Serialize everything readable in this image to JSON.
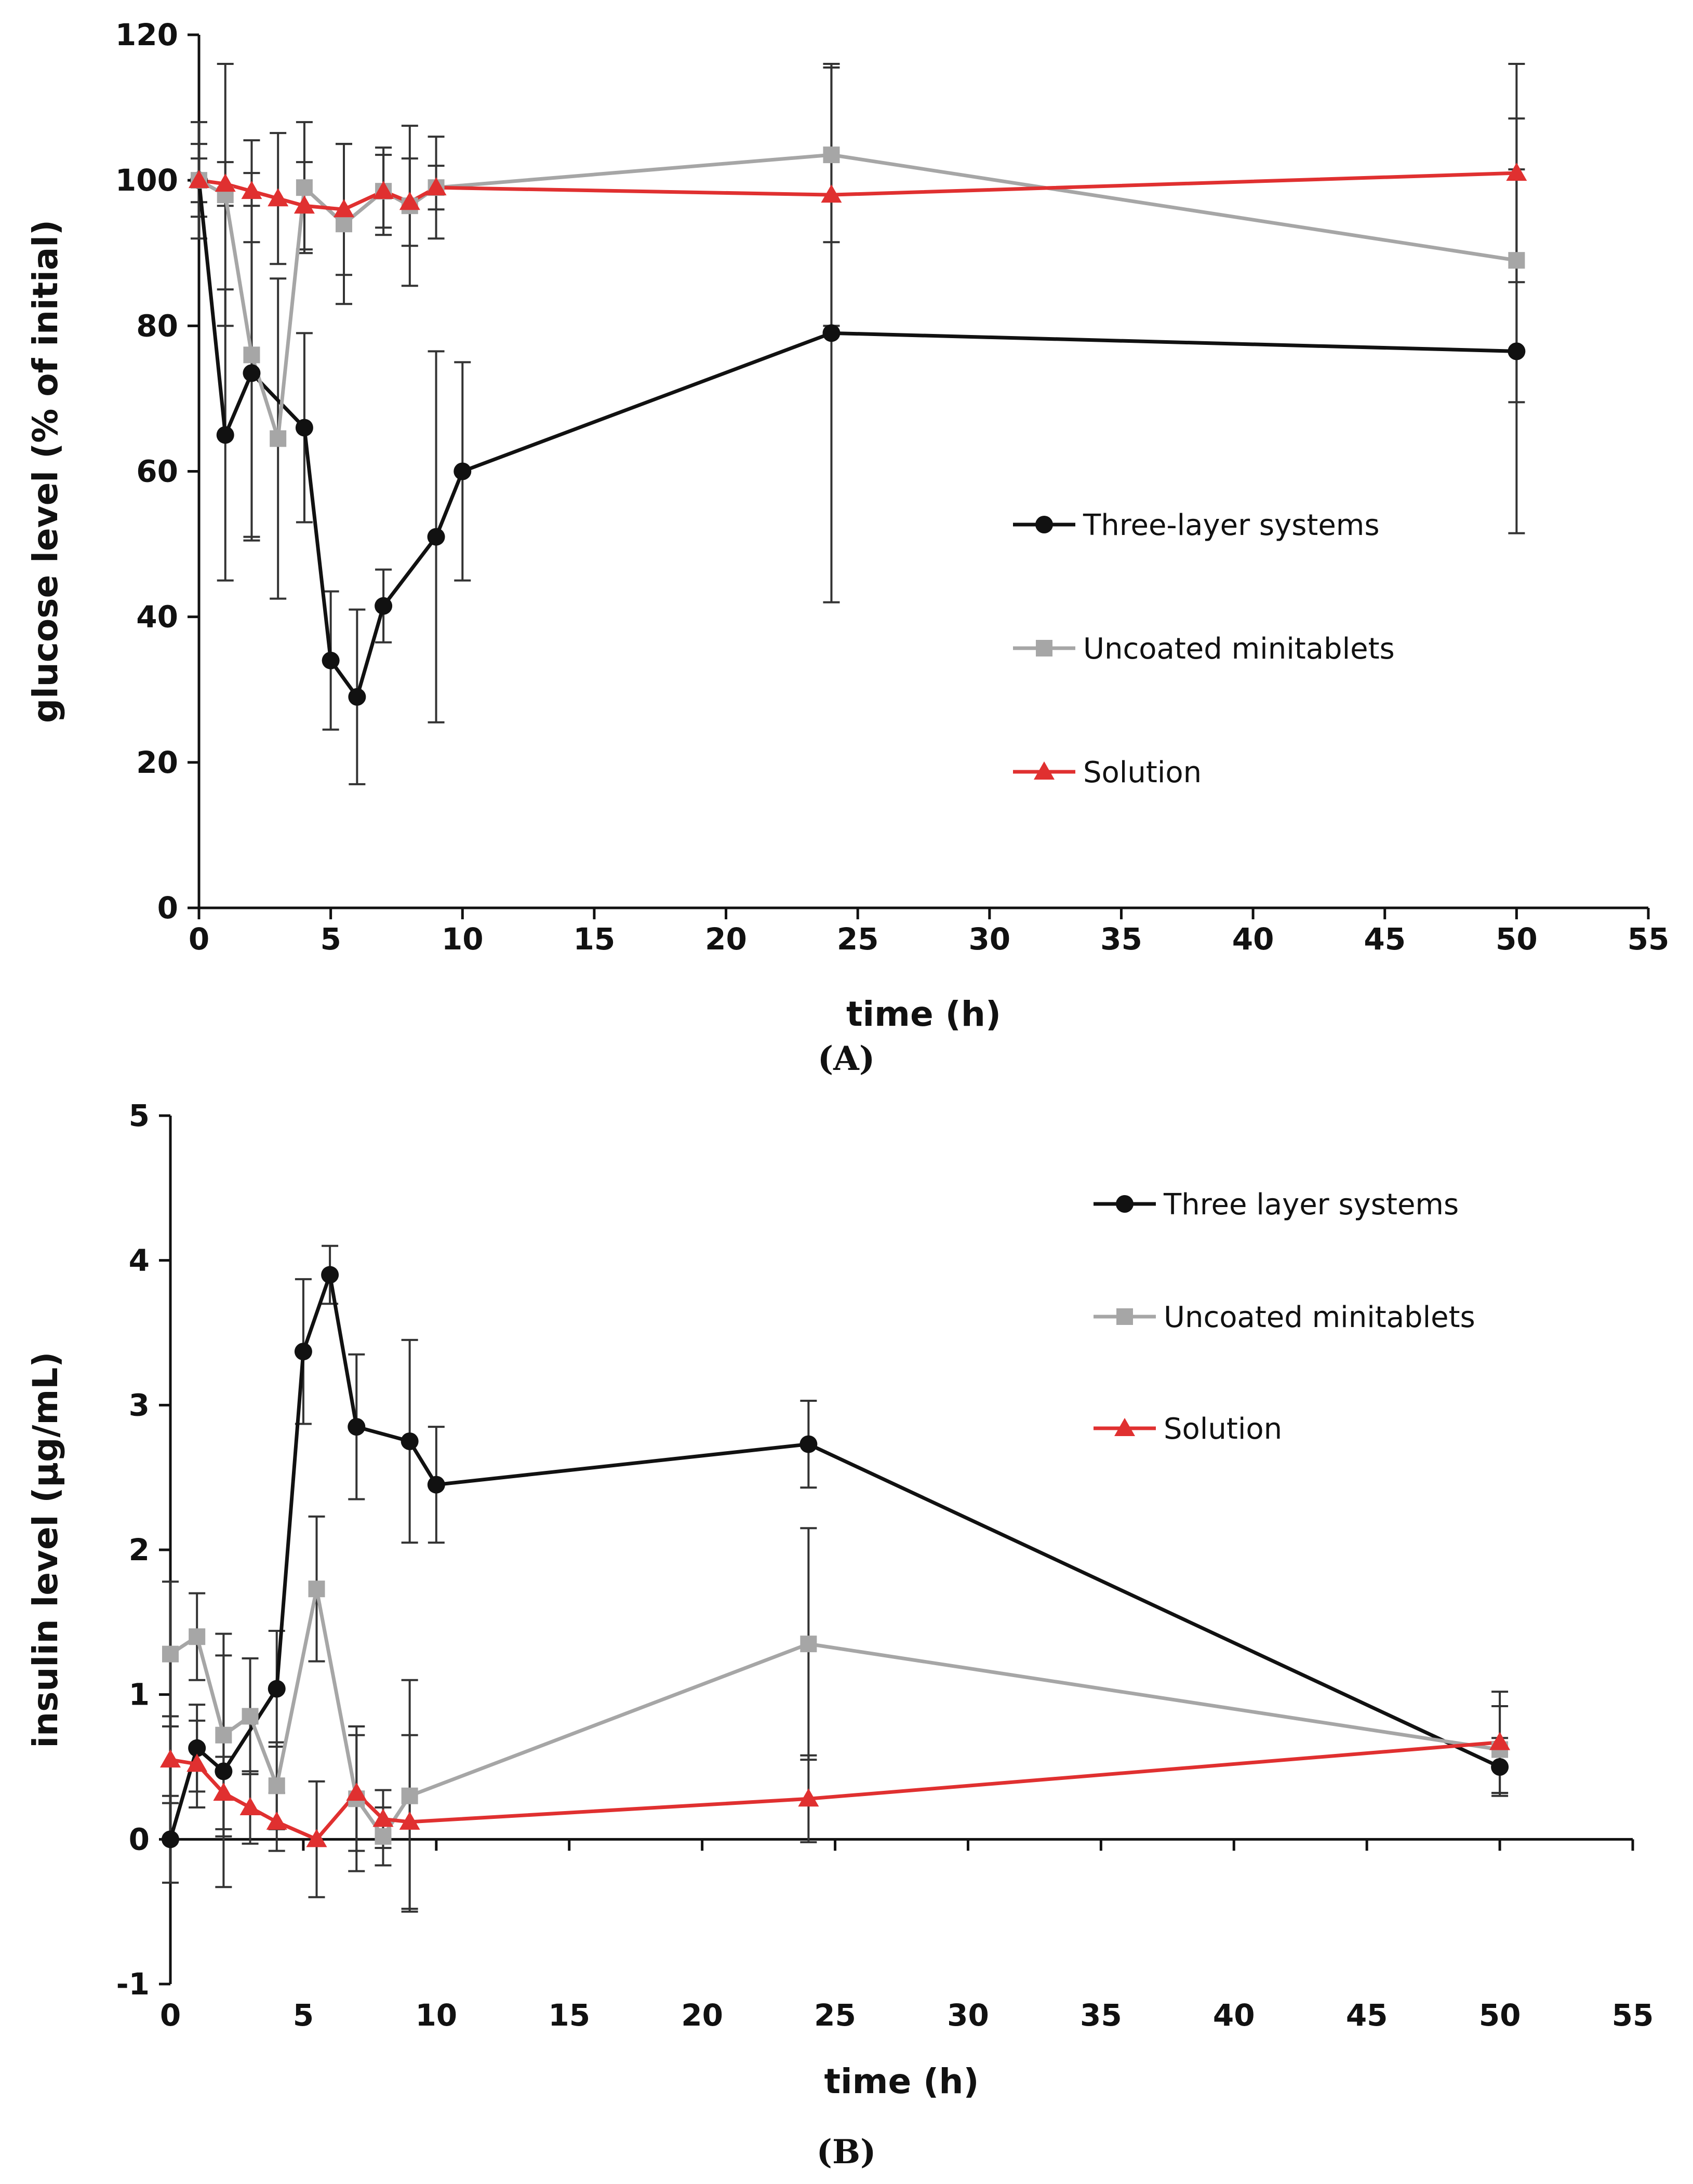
{
  "chart_data": [
    {
      "type": "line",
      "panel_label": "(A)",
      "xlabel": "time (h)",
      "ylabel": "glucose level (% of initial)",
      "xlim": [
        0,
        55
      ],
      "ylim": [
        0,
        120
      ],
      "xticks": [
        "0",
        "5",
        "10",
        "15",
        "20",
        "25",
        "30",
        "35",
        "40",
        "45",
        "50",
        "55"
      ],
      "yticks": [
        "0",
        "20",
        "40",
        "60",
        "80",
        "100",
        "120"
      ],
      "legend_position": "center-right",
      "series": [
        {
          "name": "Three-layer systems",
          "color": "#111111",
          "marker": "circle",
          "x": [
            0,
            1,
            2,
            4,
            5,
            6,
            7,
            9,
            10,
            24,
            50
          ],
          "y": [
            100,
            65,
            73.5,
            66,
            34,
            29,
            41.5,
            51,
            60,
            79,
            76.5
          ],
          "err": [
            8,
            20,
            23,
            13,
            9.5,
            12,
            5,
            25.5,
            15,
            37,
            25
          ]
        },
        {
          "name": "Uncoated minitablets",
          "color": "#a6a6a6",
          "marker": "square",
          "x": [
            0,
            1,
            2,
            3,
            4,
            5.5,
            7,
            8,
            9,
            24,
            50
          ],
          "y": [
            100,
            98,
            76,
            64.5,
            99,
            94,
            98.5,
            96.5,
            99,
            103.5,
            89
          ],
          "err": [
            5,
            18,
            25,
            22,
            9,
            11,
            6,
            11,
            7,
            12,
            19.5
          ]
        },
        {
          "name": "Solution",
          "color": "#e03030",
          "marker": "triangle",
          "x": [
            0,
            1,
            2,
            3,
            4,
            5.5,
            7,
            8,
            9,
            24,
            50
          ],
          "y": [
            100,
            99.5,
            98.5,
            97.5,
            96.5,
            96,
            98.5,
            97,
            99,
            98,
            101
          ],
          "err": [
            3,
            3,
            7,
            9,
            6,
            9,
            5,
            6,
            3,
            18,
            15
          ]
        }
      ]
    },
    {
      "type": "line",
      "panel_label": "(B)",
      "xlabel": "time (h)",
      "ylabel": "insulin level (µg/mL)",
      "xlim": [
        0,
        55
      ],
      "ylim": [
        -1,
        5
      ],
      "xticks": [
        "0",
        "5",
        "10",
        "15",
        "20",
        "25",
        "30",
        "35",
        "40",
        "45",
        "50",
        "55"
      ],
      "yticks": [
        "-1",
        "0",
        "1",
        "2",
        "3",
        "4",
        "5"
      ],
      "legend_position": "top-right",
      "series": [
        {
          "name": "Three layer systems",
          "color": "#111111",
          "marker": "circle",
          "x": [
            0,
            1,
            2,
            4,
            5,
            6,
            7,
            9,
            10,
            24,
            50
          ],
          "y": [
            0,
            0.63,
            0.47,
            1.04,
            3.37,
            3.9,
            2.85,
            2.75,
            2.45,
            2.73,
            0.5
          ],
          "err": [
            0.3,
            0.3,
            0.8,
            0.4,
            0.5,
            0.2,
            0.5,
            0.7,
            0.4,
            0.3,
            0.2
          ]
        },
        {
          "name": "Uncoated minitablets",
          "color": "#a6a6a6",
          "marker": "square",
          "x": [
            0,
            1,
            2,
            3,
            4,
            5.5,
            7,
            8,
            9,
            24,
            50
          ],
          "y": [
            1.28,
            1.4,
            0.72,
            0.85,
            0.37,
            1.73,
            0.28,
            0.02,
            0.3,
            1.35,
            0.62
          ],
          "err": [
            0.5,
            0.3,
            0.7,
            0.4,
            0.3,
            0.5,
            0.5,
            0.2,
            0.8,
            0.8,
            0.3
          ]
        },
        {
          "name": "Solution",
          "color": "#e03030",
          "marker": "triangle",
          "x": [
            0,
            1,
            2,
            3,
            4,
            5.5,
            7,
            8,
            9,
            24,
            50
          ],
          "y": [
            0.55,
            0.52,
            0.32,
            0.22,
            0.12,
            0.0,
            0.32,
            0.14,
            0.12,
            0.28,
            0.67
          ],
          "err": [
            0.3,
            0.3,
            0.25,
            0.25,
            0.2,
            0.4,
            0.4,
            0.2,
            0.6,
            0.3,
            0.35
          ]
        }
      ]
    }
  ]
}
